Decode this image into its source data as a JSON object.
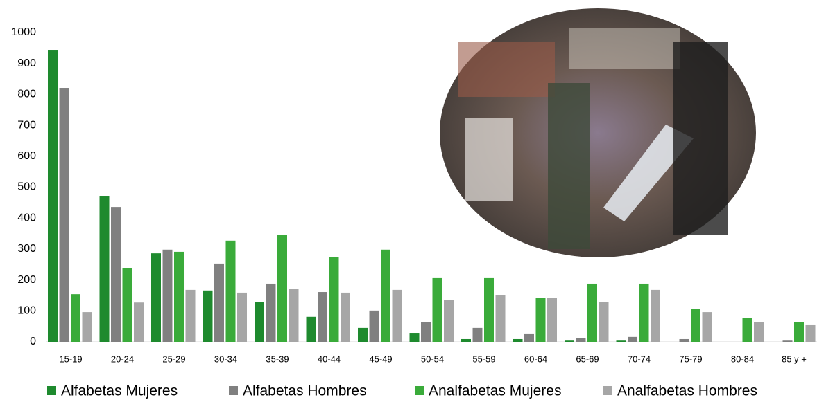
{
  "chart_data": {
    "type": "bar",
    "categories": [
      "15-19",
      "20-24",
      "25-29",
      "30-34",
      "35-39",
      "40-44",
      "45-49",
      "50-54",
      "55-59",
      "60-64",
      "65-69",
      "70-74",
      "75-79",
      "80-84",
      "85 y +"
    ],
    "series": [
      {
        "name": "Alfabetas Mujeres",
        "color": "#1e8a2e",
        "values": [
          944,
          472,
          286,
          166,
          128,
          81,
          45,
          29,
          9,
          9,
          4,
          4,
          0,
          0,
          0
        ]
      },
      {
        "name": "Alfabetas Hombres",
        "color": "#808080",
        "values": [
          821,
          436,
          298,
          253,
          188,
          161,
          101,
          63,
          45,
          27,
          13,
          16,
          9,
          0,
          4
        ]
      },
      {
        "name": "Analfabetas Mujeres",
        "color": "#3aab3a",
        "values": [
          154,
          239,
          291,
          327,
          345,
          275,
          298,
          206,
          206,
          143,
          188,
          188,
          107,
          78,
          63
        ]
      },
      {
        "name": "Analfabetas Hombres",
        "color": "#a6a6a6",
        "values": [
          96,
          127,
          168,
          159,
          172,
          159,
          168,
          136,
          152,
          143,
          128,
          168,
          96,
          63,
          56
        ]
      }
    ],
    "ylim": [
      0,
      1000
    ],
    "yticks": [
      0,
      100,
      200,
      300,
      400,
      500,
      600,
      700,
      800,
      900,
      1000
    ],
    "grid": false
  }
}
